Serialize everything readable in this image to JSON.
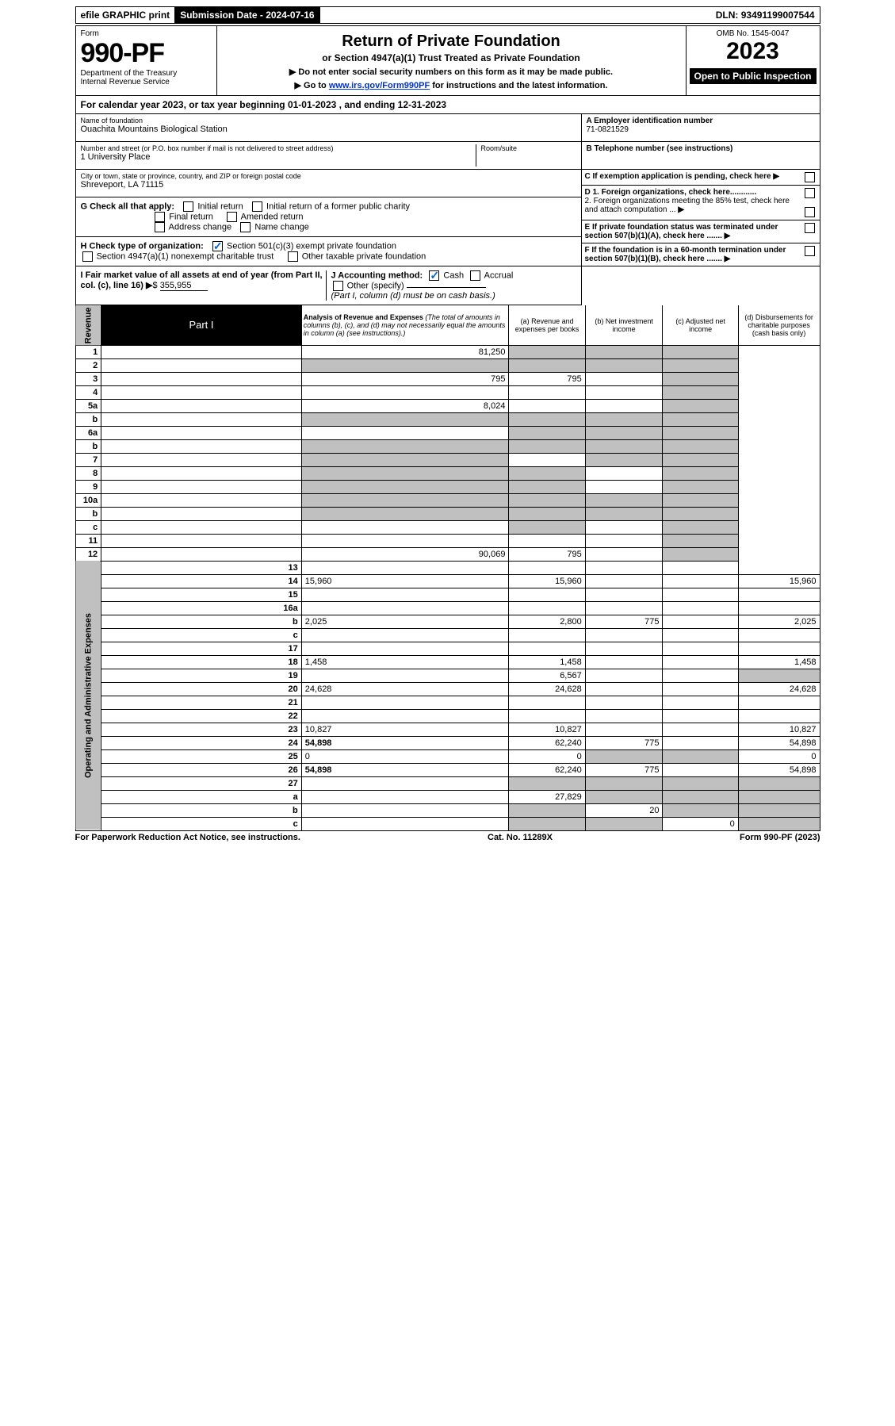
{
  "topbar": {
    "efile": "efile GRAPHIC print",
    "submission_label": "Submission Date - 2024-07-16",
    "dln": "DLN: 93491199007544"
  },
  "header": {
    "form_word": "Form",
    "form_num": "990-PF",
    "dept1": "Department of the Treasury",
    "dept2": "Internal Revenue Service",
    "title": "Return of Private Foundation",
    "subtitle": "or Section 4947(a)(1) Trust Treated as Private Foundation",
    "note1": "▶ Do not enter social security numbers on this form as it may be made public.",
    "note2_pre": "▶ Go to ",
    "note2_link": "www.irs.gov/Form990PF",
    "note2_post": " for instructions and the latest information.",
    "omb": "OMB No. 1545-0047",
    "year": "2023",
    "open_public": "Open to Public Inspection"
  },
  "calendar_year": "For calendar year 2023, or tax year beginning 01-01-2023                    , and ending 12-31-2023",
  "foundation": {
    "name_label": "Name of foundation",
    "name": "Ouachita Mountains Biological Station",
    "addr_label": "Number and street (or P.O. box number if mail is not delivered to street address)",
    "addr": "1 University Place",
    "room_label": "Room/suite",
    "city_label": "City or town, state or province, country, and ZIP or foreign postal code",
    "city": "Shreveport, LA  71115"
  },
  "right_info": {
    "a_label": "A Employer identification number",
    "a_val": "71-0821529",
    "b_label": "B Telephone number (see instructions)",
    "c_label": "C If exemption application is pending, check here",
    "d1": "D 1. Foreign organizations, check here............",
    "d2": "2. Foreign organizations meeting the 85% test, check here and attach computation ...",
    "e": "E  If private foundation status was terminated under section 507(b)(1)(A), check here .......",
    "f": "F  If the foundation is in a 60-month termination under section 507(b)(1)(B), check here .......",
    "g_label": "G Check all that apply:",
    "h_label": "H Check type of organization:",
    "i_label": "I Fair market value of all assets at end of year (from Part II, col. (c), line 16)",
    "i_val": "355,955",
    "j_label": "J Accounting method:",
    "j_other": "Other (specify)",
    "j_note": "(Part I, column (d) must be on cash basis.)"
  },
  "checks": {
    "initial_return": "Initial return",
    "initial_former": "Initial return of a former public charity",
    "final_return": "Final return",
    "amended": "Amended return",
    "addr_change": "Address change",
    "name_change": "Name change",
    "sec501": "Section 501(c)(3) exempt private foundation",
    "sec4947": "Section 4947(a)(1) nonexempt charitable trust",
    "other_taxable": "Other taxable private foundation",
    "cash": "Cash",
    "accrual": "Accrual"
  },
  "part1": {
    "label": "Part I",
    "title": "Analysis of Revenue and Expenses",
    "note": "(The total of amounts in columns (b), (c), and (d) may not necessarily equal the amounts in column (a) (see instructions).)",
    "col_a": "(a)   Revenue and expenses per books",
    "col_b": "(b)   Net investment income",
    "col_c": "(c)   Adjusted net income",
    "col_d": "(d)   Disbursements for charitable purposes (cash basis only)"
  },
  "sidelabels": {
    "revenue": "Revenue",
    "expenses": "Operating and Administrative Expenses"
  },
  "rows": [
    {
      "n": "1",
      "d": "",
      "a": "81,250",
      "b": "",
      "c": "",
      "ga": false,
      "gb": true,
      "gc": true,
      "gd": true
    },
    {
      "n": "2",
      "d": "",
      "a": "",
      "b": "",
      "c": "",
      "ga": true,
      "gb": true,
      "gc": true,
      "gd": true
    },
    {
      "n": "3",
      "d": "",
      "a": "795",
      "b": "795",
      "c": "",
      "ga": false,
      "gb": false,
      "gc": false,
      "gd": true
    },
    {
      "n": "4",
      "d": "",
      "a": "",
      "b": "",
      "c": "",
      "ga": false,
      "gb": false,
      "gc": false,
      "gd": true
    },
    {
      "n": "5a",
      "d": "",
      "a": "8,024",
      "b": "",
      "c": "",
      "ga": false,
      "gb": false,
      "gc": false,
      "gd": true
    },
    {
      "n": "b",
      "d": "",
      "a": "",
      "b": "",
      "c": "",
      "ga": true,
      "gb": true,
      "gc": true,
      "gd": true
    },
    {
      "n": "6a",
      "d": "",
      "a": "",
      "b": "",
      "c": "",
      "ga": false,
      "gb": true,
      "gc": true,
      "gd": true
    },
    {
      "n": "b",
      "d": "",
      "a": "",
      "b": "",
      "c": "",
      "ga": true,
      "gb": true,
      "gc": true,
      "gd": true
    },
    {
      "n": "7",
      "d": "",
      "a": "",
      "b": "",
      "c": "",
      "ga": true,
      "gb": false,
      "gc": true,
      "gd": true
    },
    {
      "n": "8",
      "d": "",
      "a": "",
      "b": "",
      "c": "",
      "ga": true,
      "gb": true,
      "gc": false,
      "gd": true
    },
    {
      "n": "9",
      "d": "",
      "a": "",
      "b": "",
      "c": "",
      "ga": true,
      "gb": true,
      "gc": false,
      "gd": true
    },
    {
      "n": "10a",
      "d": "",
      "a": "",
      "b": "",
      "c": "",
      "ga": true,
      "gb": true,
      "gc": true,
      "gd": true
    },
    {
      "n": "b",
      "d": "",
      "a": "",
      "b": "",
      "c": "",
      "ga": true,
      "gb": true,
      "gc": true,
      "gd": true
    },
    {
      "n": "c",
      "d": "",
      "a": "",
      "b": "",
      "c": "",
      "ga": false,
      "gb": true,
      "gc": false,
      "gd": true
    },
    {
      "n": "11",
      "d": "",
      "a": "",
      "b": "",
      "c": "",
      "ga": false,
      "gb": false,
      "gc": false,
      "gd": true
    },
    {
      "n": "12",
      "d": "",
      "a": "90,069",
      "b": "795",
      "c": "",
      "bold": true,
      "ga": false,
      "gb": false,
      "gc": false,
      "gd": true
    },
    {
      "n": "13",
      "d": "",
      "a": "",
      "b": "",
      "c": ""
    },
    {
      "n": "14",
      "d": "15,960",
      "a": "15,960",
      "b": "",
      "c": ""
    },
    {
      "n": "15",
      "d": "",
      "a": "",
      "b": "",
      "c": ""
    },
    {
      "n": "16a",
      "d": "",
      "a": "",
      "b": "",
      "c": ""
    },
    {
      "n": "b",
      "d": "2,025",
      "a": "2,800",
      "b": "775",
      "c": ""
    },
    {
      "n": "c",
      "d": "",
      "a": "",
      "b": "",
      "c": ""
    },
    {
      "n": "17",
      "d": "",
      "a": "",
      "b": "",
      "c": ""
    },
    {
      "n": "18",
      "d": "1,458",
      "a": "1,458",
      "b": "",
      "c": ""
    },
    {
      "n": "19",
      "d": "",
      "a": "6,567",
      "b": "",
      "c": "",
      "gd": true
    },
    {
      "n": "20",
      "d": "24,628",
      "a": "24,628",
      "b": "",
      "c": ""
    },
    {
      "n": "21",
      "d": "",
      "a": "",
      "b": "",
      "c": ""
    },
    {
      "n": "22",
      "d": "",
      "a": "",
      "b": "",
      "c": ""
    },
    {
      "n": "23",
      "d": "10,827",
      "a": "10,827",
      "b": "",
      "c": ""
    },
    {
      "n": "24",
      "d": "54,898",
      "a": "62,240",
      "b": "775",
      "c": "",
      "bold": true
    },
    {
      "n": "25",
      "d": "0",
      "a": "0",
      "b": "",
      "c": "",
      "gb": true,
      "gc": true
    },
    {
      "n": "26",
      "d": "54,898",
      "a": "62,240",
      "b": "775",
      "c": "",
      "bold": true
    },
    {
      "n": "27",
      "d": "",
      "a": "",
      "b": "",
      "c": "",
      "ga": true,
      "gb": true,
      "gc": true,
      "gd": true
    },
    {
      "n": "a",
      "d": "",
      "a": "27,829",
      "b": "",
      "c": "",
      "bold": true,
      "gb": true,
      "gc": true,
      "gd": true
    },
    {
      "n": "b",
      "d": "",
      "a": "",
      "b": "20",
      "c": "",
      "bold": true,
      "ga": true,
      "gc": true,
      "gd": true
    },
    {
      "n": "c",
      "d": "",
      "a": "",
      "b": "",
      "c": "0",
      "bold": true,
      "ga": true,
      "gb": true,
      "gd": true
    }
  ],
  "footer": {
    "left": "For Paperwork Reduction Act Notice, see instructions.",
    "mid": "Cat. No. 11289X",
    "right": "Form 990-PF (2023)"
  }
}
